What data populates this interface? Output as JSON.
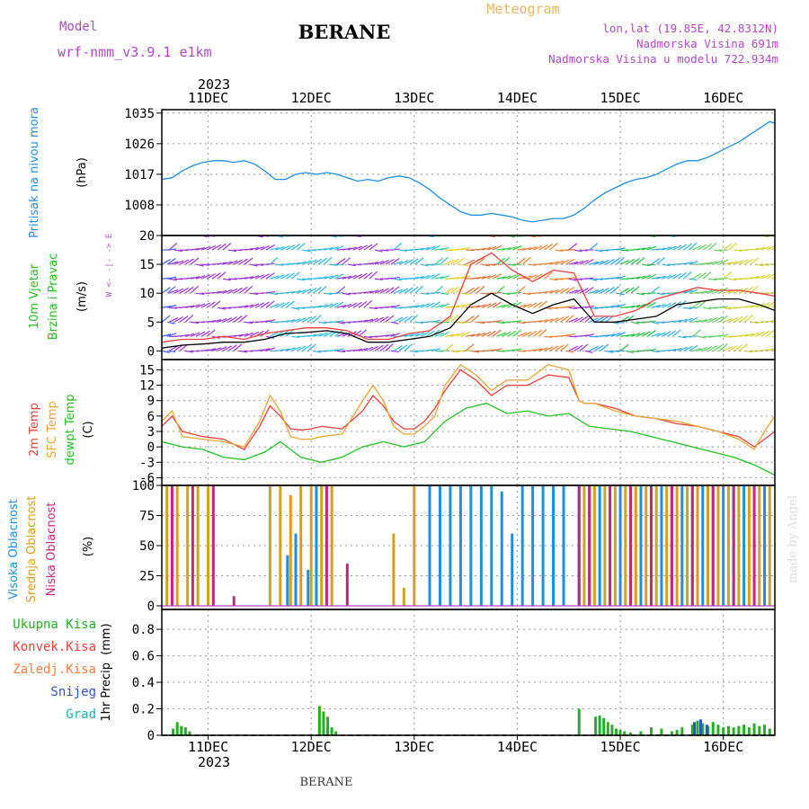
{
  "header": {
    "model_label": "Model",
    "model_name": "wrf-nmm_v3.9.1  e1km",
    "station": "BERANE",
    "product": "Meteogram",
    "lonlat": "lon,lat (19.85E, 42.8312N)",
    "altitude": "Nadmorska Visina 691m",
    "model_altitude": "Nadmorska Visina u modelu 722.934m",
    "year": "2023",
    "footer_station": "BERANE",
    "credit": "made by Angel"
  },
  "colors": {
    "pressure": "#1e90e0",
    "temp2m": "#e8413c",
    "sfc_temp": "#e8a535",
    "dewpoint": "#22c022",
    "high_cloud": "#1e90e0",
    "mid_cloud": "#d4a020",
    "low_cloud": "#c0287a",
    "precip_total": "#22b022",
    "precip_conv": "#e8413c",
    "precip_freezing": "#f08040",
    "snow": "#3050d0",
    "hail": "#20b0b0",
    "wind_speed": "#000000",
    "gust": "#e8413c"
  },
  "chart_data": {
    "type": "meteogram",
    "x_ticks": [
      "11DEC",
      "12DEC",
      "13DEC",
      "14DEC",
      "15DEC",
      "16DEC"
    ],
    "x_range_days": [
      10.55,
      16.5
    ],
    "panels": [
      {
        "id": "pressure",
        "ylabel": "Pritisak na nivou mora",
        "unit": "(hPa)",
        "yticks": [
          1008,
          1017,
          1026,
          1035
        ],
        "ylim": [
          999,
          1036
        ],
        "series": [
          {
            "key": "mslp",
            "color_key": "pressure",
            "x": [
              10.55,
              10.65,
              10.75,
              10.85,
              10.95,
              11.05,
              11.15,
              11.25,
              11.35,
              11.45,
              11.55,
              11.65,
              11.75,
              11.85,
              11.95,
              12.05,
              12.15,
              12.25,
              12.35,
              12.45,
              12.55,
              12.65,
              12.75,
              12.85,
              12.95,
              13.05,
              13.15,
              13.25,
              13.35,
              13.45,
              13.55,
              13.65,
              13.75,
              13.85,
              13.95,
              14.05,
              14.15,
              14.25,
              14.35,
              14.45,
              14.55,
              14.65,
              14.75,
              14.85,
              14.95,
              15.05,
              15.15,
              15.25,
              15.35,
              15.45,
              15.55,
              15.65,
              15.75,
              15.85,
              15.95,
              16.05,
              16.15,
              16.25,
              16.35,
              16.45,
              16.5
            ],
            "y": [
              1015.5,
              1016,
              1018,
              1019.5,
              1020.5,
              1021,
              1021,
              1020.5,
              1021,
              1020,
              1018,
              1015.5,
              1015.5,
              1017,
              1017.5,
              1017,
              1017.5,
              1017,
              1016,
              1015,
              1015.5,
              1015,
              1016,
              1016.5,
              1016,
              1014.5,
              1012.5,
              1010,
              1008,
              1006,
              1005,
              1005,
              1005.5,
              1005,
              1004.5,
              1003.5,
              1003,
              1003.5,
              1004,
              1004,
              1005,
              1007,
              1009.5,
              1011.5,
              1013,
              1014.5,
              1015.5,
              1016,
              1017,
              1018.5,
              1020,
              1021,
              1021,
              1022,
              1023.5,
              1025,
              1026.5,
              1028.5,
              1030.5,
              1032.5,
              1032
            ]
          }
        ]
      },
      {
        "id": "wind",
        "ylabel": "10m Vjetar Brzina i Pravac",
        "unit": "(m/s)",
        "yticks": [
          0,
          5,
          10,
          15,
          20
        ],
        "ylim": [
          -1.5,
          20
        ],
        "compass": "W <- -|- -> E",
        "series": [
          {
            "key": "speed",
            "color_key": "wind_speed",
            "x": [
              10.55,
              10.75,
              10.95,
              11.15,
              11.35,
              11.55,
              11.75,
              11.95,
              12.15,
              12.35,
              12.55,
              12.75,
              12.95,
              13.15,
              13.35,
              13.55,
              13.75,
              13.95,
              14.15,
              14.35,
              14.55,
              14.75,
              14.95,
              15.15,
              15.35,
              15.55,
              15.75,
              15.95,
              16.15,
              16.35,
              16.5
            ],
            "y": [
              0.5,
              1,
              1.2,
              1.5,
              1.5,
              2,
              3,
              3.2,
              3.5,
              3,
              1.5,
              1.5,
              2,
              2.5,
              4,
              8,
              10,
              8,
              6.5,
              8,
              9,
              5,
              5,
              5.5,
              6,
              8,
              8.5,
              9,
              9,
              8,
              7
            ]
          },
          {
            "key": "gust",
            "color_key": "gust",
            "x": [
              10.55,
              10.75,
              10.95,
              11.15,
              11.35,
              11.55,
              11.75,
              11.95,
              12.15,
              12.35,
              12.55,
              12.75,
              12.95,
              13.15,
              13.35,
              13.55,
              13.75,
              13.95,
              14.15,
              14.35,
              14.55,
              14.75,
              14.95,
              15.15,
              15.35,
              15.55,
              15.75,
              15.95,
              16.15,
              16.35,
              16.5
            ],
            "y": [
              1.5,
              2,
              2,
              2.5,
              2,
              3,
              3.5,
              4,
              4,
              3.5,
              2,
              2,
              3,
              3.5,
              6,
              15,
              17,
              14,
              12,
              14,
              13.5,
              6,
              6,
              7,
              9,
              10,
              11,
              10.5,
              10.5,
              10,
              9.5
            ]
          }
        ]
      },
      {
        "id": "temperature",
        "ylabel": "2m Temp / SFC Temp / dewpt Temp",
        "unit": "(C)",
        "yticks": [
          -6,
          -3,
          0,
          3,
          6,
          9,
          12,
          15
        ],
        "ylim": [
          -7.5,
          17
        ],
        "series": [
          {
            "key": "t2m",
            "name": "2m Temp",
            "color_key": "temp2m",
            "x": [
              10.55,
              10.65,
              10.75,
              10.95,
              11.15,
              11.35,
              11.5,
              11.6,
              11.7,
              11.8,
              11.9,
              12.0,
              12.1,
              12.3,
              12.5,
              12.6,
              12.7,
              12.8,
              12.9,
              13.0,
              13.1,
              13.2,
              13.3,
              13.45,
              13.6,
              13.75,
              13.9,
              14.1,
              14.3,
              14.5,
              14.6,
              14.65,
              14.75,
              14.95,
              15.15,
              15.35,
              15.55,
              15.75,
              15.95,
              16.15,
              16.3,
              16.4,
              16.5
            ],
            "y": [
              4,
              6,
              3,
              2,
              1.5,
              -0.5,
              4,
              8,
              6,
              3.5,
              3.3,
              3.5,
              4,
              3.5,
              7,
              10,
              8,
              5,
              3.5,
              3.5,
              5,
              7.5,
              11,
              15,
              13,
              10,
              12,
              12,
              14,
              13.5,
              9,
              8.5,
              8.5,
              7.5,
              6,
              5.5,
              4.5,
              4,
              3,
              2,
              0,
              1.5,
              3
            ]
          },
          {
            "key": "sfc",
            "name": "SFC Temp",
            "color_key": "sfc_temp",
            "x": [
              10.55,
              10.65,
              10.75,
              10.95,
              11.15,
              11.35,
              11.5,
              11.6,
              11.7,
              11.8,
              11.9,
              12.0,
              12.1,
              12.3,
              12.5,
              12.6,
              12.7,
              12.8,
              12.9,
              13.0,
              13.1,
              13.2,
              13.3,
              13.45,
              13.6,
              13.75,
              13.9,
              14.1,
              14.3,
              14.5,
              14.6,
              14.65,
              14.75,
              14.95,
              15.15,
              15.35,
              15.55,
              15.75,
              15.95,
              16.15,
              16.3,
              16.4,
              16.5
            ],
            "y": [
              5,
              7,
              2,
              1.5,
              1,
              0,
              5,
              10,
              7,
              2,
              1.5,
              1.5,
              2,
              2.5,
              9,
              12,
              9,
              4,
              2.5,
              2.5,
              4,
              6,
              12,
              16,
              14,
              11,
              13,
              13,
              16,
              15,
              9,
              8.5,
              8.5,
              7,
              6,
              5.5,
              5,
              4,
              3,
              1.5,
              -0.5,
              3,
              6
            ]
          },
          {
            "key": "dew",
            "name": "dewpt Temp",
            "color_key": "dewpoint",
            "x": [
              10.55,
              10.75,
              10.95,
              11.15,
              11.35,
              11.55,
              11.7,
              11.9,
              12.1,
              12.3,
              12.5,
              12.7,
              12.9,
              13.1,
              13.3,
              13.5,
              13.7,
              13.9,
              14.1,
              14.3,
              14.5,
              14.7,
              14.9,
              15.1,
              15.3,
              15.5,
              15.7,
              15.9,
              16.1,
              16.3,
              16.5
            ],
            "y": [
              1,
              0,
              -0.5,
              -2,
              -2.5,
              -1,
              1,
              -2,
              -3,
              -2,
              0,
              1,
              0,
              1,
              5,
              7.5,
              8.5,
              6.5,
              7,
              6,
              6.5,
              4,
              3.5,
              3,
              2,
              1,
              0,
              -1,
              -2,
              -3.5,
              -5.5
            ]
          }
        ]
      },
      {
        "id": "cloud",
        "ylabel": "Visoka / Srednja / Niska Oblacnost",
        "unit": "(%)",
        "yticks": [
          0,
          25,
          50,
          75,
          100
        ],
        "ylim": [
          -3,
          100
        ],
        "series": [
          {
            "key": "high",
            "name": "Visoka Oblacnost",
            "color_key": "high_cloud",
            "x": [
              11.77,
              11.85,
              11.97,
              12.05,
              13.15,
              13.25,
              13.35,
              13.45,
              13.55,
              13.65,
              13.75,
              13.85,
              13.95,
              14.05,
              14.15,
              14.25,
              14.35,
              14.45,
              14.6,
              14.7,
              14.8,
              14.9,
              15.0,
              15.1,
              15.2,
              15.3,
              15.4,
              15.5,
              15.6,
              15.7,
              15.8,
              15.9,
              16.0,
              16.1,
              16.2,
              16.3,
              16.4
            ],
            "values": [
              42,
              60,
              30,
              100,
              100,
              100,
              100,
              100,
              100,
              100,
              100,
              95,
              60,
              100,
              100,
              100,
              100,
              100,
              100,
              100,
              100,
              100,
              100,
              100,
              100,
              100,
              100,
              100,
              100,
              100,
              100,
              100,
              100,
              100,
              100,
              100,
              100
            ]
          },
          {
            "key": "mid",
            "name": "Srednja Oblacnost",
            "color_key": "mid_cloud",
            "x": [
              10.6,
              10.7,
              10.8,
              10.9,
              11.0,
              11.6,
              11.7,
              11.8,
              11.9,
              12.0,
              12.1,
              12.2,
              12.8,
              12.9,
              13.0,
              14.65,
              14.75,
              14.85,
              14.95,
              15.05,
              15.15,
              15.25,
              15.35,
              15.45,
              15.55,
              15.65,
              15.75,
              15.85,
              15.95,
              16.05,
              16.15,
              16.25,
              16.35,
              16.45
            ],
            "values": [
              100,
              100,
              100,
              100,
              100,
              100,
              100,
              92,
              100,
              100,
              100,
              100,
              60,
              15,
              100,
              100,
              100,
              100,
              100,
              100,
              100,
              100,
              100,
              100,
              100,
              100,
              100,
              100,
              100,
              100,
              100,
              100,
              100,
              100
            ]
          },
          {
            "key": "low",
            "name": "Niska Oblacnost",
            "color_key": "low_cloud",
            "x": [
              10.65,
              10.85,
              11.05,
              11.25,
              12.15,
              12.35,
              14.6,
              14.7,
              14.9,
              15.1,
              15.3,
              15.5,
              15.7,
              15.9,
              16.1,
              16.3
            ],
            "values": [
              100,
              100,
              100,
              8,
              100,
              35,
              100,
              100,
              100,
              100,
              100,
              100,
              100,
              100,
              100,
              100
            ]
          }
        ]
      },
      {
        "id": "precip",
        "ylabel": "1hr Precip",
        "unit": "(mm)",
        "yticks": [
          0,
          0.2,
          0.4,
          0.6,
          0.8
        ],
        "ylim": [
          0,
          0.95
        ],
        "legend": [
          "Ukupna Kisa",
          "Konvek.Kisa",
          "Zaledj.Kisa",
          "Snijeg",
          "Grad"
        ],
        "series": [
          {
            "key": "total",
            "name": "Ukupna Kisa",
            "color_key": "precip_total",
            "x": [
              10.66,
              10.7,
              10.74,
              10.78,
              10.82,
              12.08,
              12.12,
              12.16,
              12.2,
              12.24,
              14.6,
              14.76,
              14.8,
              14.84,
              14.88,
              14.92,
              14.96,
              15.0,
              15.04,
              15.1,
              15.2,
              15.3,
              15.4,
              15.5,
              15.55,
              15.6,
              15.7,
              15.75,
              15.8,
              15.85,
              15.9,
              15.95,
              16.0,
              16.05,
              16.1,
              16.15,
              16.2,
              16.25,
              16.3,
              16.35,
              16.4,
              16.45
            ],
            "values": [
              0.05,
              0.1,
              0.07,
              0.06,
              0.03,
              0.22,
              0.18,
              0.14,
              0.06,
              0.03,
              0.2,
              0.14,
              0.15,
              0.13,
              0.1,
              0.08,
              0.05,
              0.04,
              0.03,
              0.02,
              0.03,
              0.06,
              0.05,
              0.03,
              0.04,
              0.06,
              0.08,
              0.11,
              0.09,
              0.07,
              0.1,
              0.08,
              0.06,
              0.07,
              0.06,
              0.07,
              0.08,
              0.06,
              0.09,
              0.07,
              0.08,
              0.05
            ]
          },
          {
            "key": "snow",
            "name": "Snijeg",
            "color_key": "snow",
            "x": [
              15.72,
              15.78,
              15.84
            ],
            "values": [
              0.1,
              0.12,
              0.08
            ]
          }
        ]
      }
    ]
  }
}
